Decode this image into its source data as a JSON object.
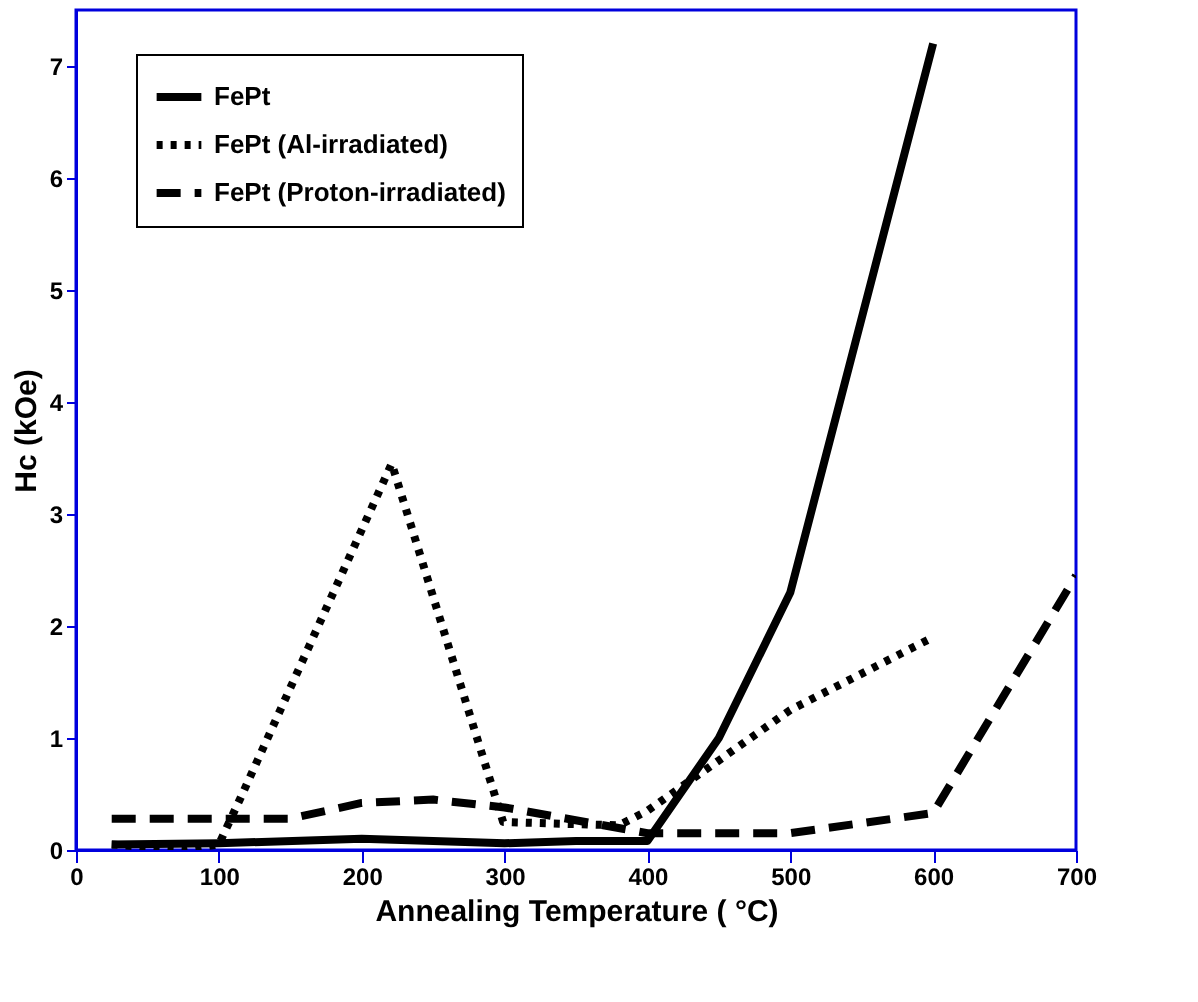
{
  "chart_data": {
    "type": "line",
    "xlabel": "Annealing Temperature ( °C)",
    "ylabel": "Hc (kOe)",
    "xlim": [
      0,
      700
    ],
    "xticks": [
      0,
      100,
      200,
      300,
      400,
      500,
      600,
      700
    ],
    "ylim": [
      0,
      7.5
    ],
    "yticks": [
      0,
      1,
      2,
      3,
      4,
      5,
      6,
      7
    ],
    "grid": false,
    "legend": "top left",
    "marker": "none",
    "series": [
      {
        "name": "FePt",
        "color": "#000000",
        "line_style": "solid",
        "x": [
          25,
          100,
          200,
          300,
          350,
          400,
          450,
          500,
          600
        ],
        "values": [
          0.05,
          0.06,
          0.1,
          0.06,
          0.08,
          0.08,
          1.0,
          2.3,
          7.2
        ]
      },
      {
        "name": "FePt (Al-irradiated)",
        "color": "#000000",
        "line_style": "dotted",
        "x": [
          25,
          75,
          100,
          115,
          221,
          299,
          380,
          400,
          450,
          500,
          600
        ],
        "values": [
          0.05,
          0.0,
          0.05,
          0.46,
          3.45,
          0.25,
          0.22,
          0.35,
          0.8,
          1.25,
          1.9
        ]
      },
      {
        "name": "FePt (Proton-irradiated)",
        "color": "#000000",
        "line_style": "dashed",
        "x": [
          25,
          100,
          150,
          200,
          250,
          300,
          400,
          500,
          600,
          700
        ],
        "values": [
          0.28,
          0.28,
          0.28,
          0.42,
          0.45,
          0.38,
          0.15,
          0.15,
          0.33,
          2.45
        ]
      }
    ]
  }
}
